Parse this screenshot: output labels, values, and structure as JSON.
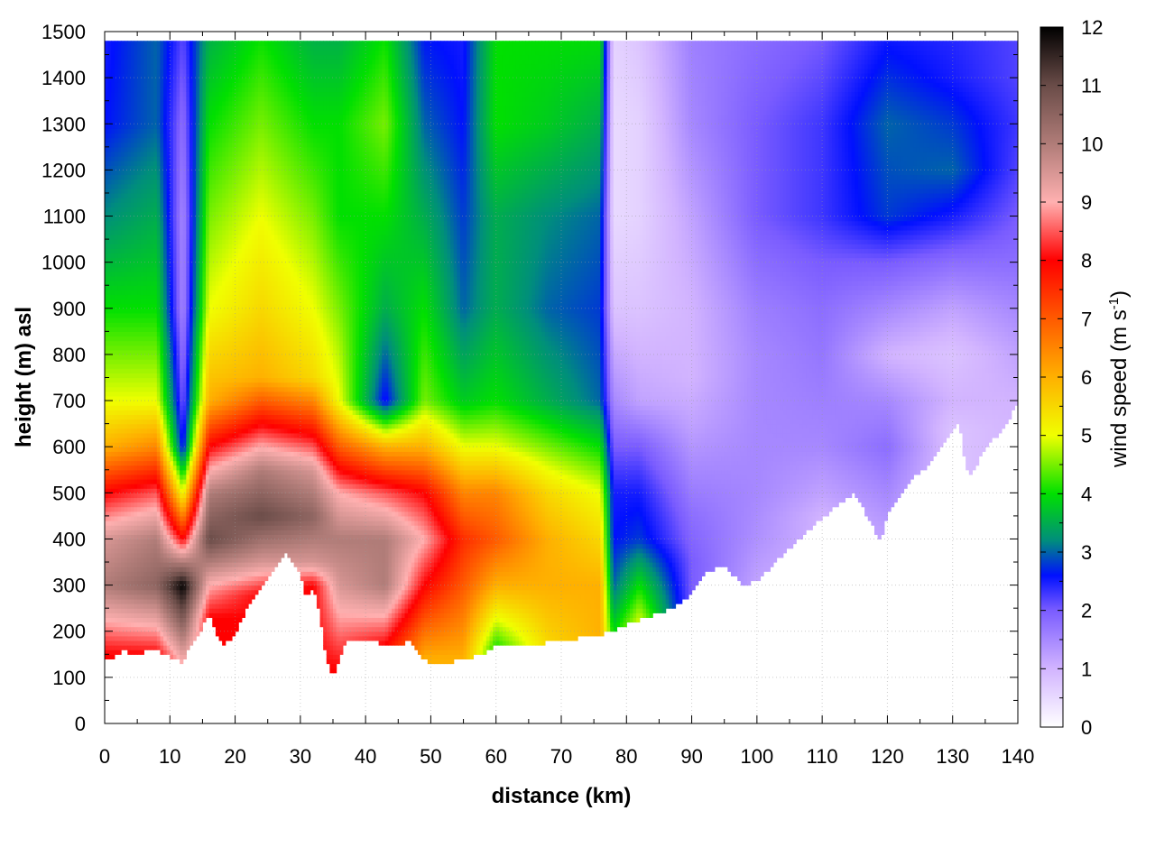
{
  "chart_data": {
    "type": "heatmap",
    "title": "",
    "xlabel": "distance (km)",
    "ylabel": "height (m) asl",
    "xlim": [
      0,
      140
    ],
    "ylim": [
      0,
      1500
    ],
    "xticks": [
      0,
      10,
      20,
      30,
      40,
      50,
      60,
      70,
      80,
      90,
      100,
      110,
      120,
      130,
      140
    ],
    "yticks": [
      0,
      100,
      200,
      300,
      400,
      500,
      600,
      700,
      800,
      900,
      1000,
      1100,
      1200,
      1300,
      1400,
      1500
    ],
    "grid": true,
    "colorbar": {
      "label_main": "wind speed (m s",
      "label_sup": "-1",
      "label_end": ")",
      "min": 0,
      "max": 12,
      "ticks": [
        0,
        1,
        2,
        3,
        4,
        5,
        6,
        7,
        8,
        9,
        10,
        11,
        12
      ],
      "colors": [
        {
          "v": 0,
          "c": "#ffffff"
        },
        {
          "v": 1,
          "c": "#d2b4ff"
        },
        {
          "v": 2,
          "c": "#7a5cff"
        },
        {
          "v": 2.6,
          "c": "#0010ff"
        },
        {
          "v": 3.2,
          "c": "#008e7c"
        },
        {
          "v": 4,
          "c": "#00e000"
        },
        {
          "v": 5,
          "c": "#f0ff00"
        },
        {
          "v": 6,
          "c": "#ffb000"
        },
        {
          "v": 7,
          "c": "#ff5a00"
        },
        {
          "v": 8,
          "c": "#ff0000"
        },
        {
          "v": 9,
          "c": "#ffb0b0"
        },
        {
          "v": 10,
          "c": "#b07c78"
        },
        {
          "v": 11,
          "c": "#6a4c48"
        },
        {
          "v": 12,
          "c": "#000000"
        }
      ]
    },
    "terrain_lower_boundary": {
      "x": [
        0,
        1,
        2,
        3,
        4,
        6,
        8,
        10,
        12,
        13,
        15,
        16,
        17,
        18,
        20,
        22,
        25,
        28,
        30,
        31,
        32,
        33,
        34,
        35,
        37,
        40,
        42,
        45,
        47,
        48,
        50,
        52,
        55,
        58,
        60,
        65,
        70,
        75,
        78,
        80,
        85,
        88,
        90,
        92,
        95,
        98,
        100,
        105,
        108,
        112,
        115,
        118,
        119,
        120,
        122,
        124,
        126,
        128,
        130,
        131,
        132,
        133,
        135,
        138,
        140
      ],
      "y": [
        140,
        135,
        150,
        160,
        150,
        155,
        160,
        145,
        130,
        170,
        210,
        240,
        200,
        170,
        190,
        260,
        320,
        370,
        320,
        270,
        300,
        240,
        140,
        100,
        180,
        180,
        175,
        170,
        180,
        150,
        130,
        130,
        140,
        150,
        170,
        170,
        180,
        190,
        200,
        215,
        240,
        260,
        280,
        330,
        340,
        300,
        310,
        380,
        420,
        470,
        500,
        420,
        400,
        450,
        500,
        540,
        550,
        600,
        640,
        650,
        560,
        540,
        600,
        640,
        700
      ]
    },
    "top_boundary_height": 1480,
    "value_field_profiles": [
      {
        "x": 0,
        "z": [
          150,
          300,
          400,
          500,
          600,
          700,
          900,
          1100,
          1300,
          1500
        ],
        "v": [
          8,
          10,
          9.5,
          8,
          6,
          5,
          4,
          3.2,
          2.6,
          2.5
        ]
      },
      {
        "x": 8,
        "z": [
          150,
          300,
          400,
          500,
          600,
          700,
          900,
          1100,
          1300,
          1500
        ],
        "v": [
          8,
          10.5,
          10,
          8.5,
          6.5,
          5,
          4,
          3.5,
          3,
          3
        ]
      },
      {
        "x": 12,
        "z": [
          130,
          300,
          400,
          500,
          600,
          700,
          900,
          1100,
          1300,
          1500
        ],
        "v": [
          9,
          12,
          8,
          5,
          2.5,
          2,
          1.5,
          1.5,
          1.8,
          2.2
        ]
      },
      {
        "x": 16,
        "z": [
          230,
          300,
          400,
          500,
          600,
          700,
          900,
          1100,
          1300,
          1500
        ],
        "v": [
          8,
          9,
          11,
          10,
          8,
          6,
          5,
          4.5,
          4,
          3.5
        ]
      },
      {
        "x": 24,
        "z": [
          280,
          350,
          450,
          550,
          650,
          750,
          900,
          1100,
          1300,
          1500
        ],
        "v": [
          8,
          9.5,
          11,
          10,
          8,
          6,
          5.5,
          5,
          4.5,
          4
        ]
      },
      {
        "x": 32,
        "z": [
          300,
          350,
          450,
          550,
          650,
          750,
          900,
          1100,
          1300,
          1500
        ],
        "v": [
          8,
          9.5,
          10.5,
          9.5,
          7.5,
          5.5,
          5,
          4.5,
          4,
          3.5
        ]
      },
      {
        "x": 36,
        "z": [
          120,
          300,
          400,
          500,
          600,
          700,
          900,
          1100,
          1300,
          1500
        ],
        "v": [
          8,
          9.5,
          10,
          9,
          7,
          5,
          4.5,
          4,
          4,
          3.5
        ]
      },
      {
        "x": 43,
        "z": [
          170,
          300,
          400,
          500,
          600,
          700,
          900,
          1100,
          1300,
          1500
        ],
        "v": [
          8,
          10,
          10,
          8.5,
          6,
          2.5,
          3.5,
          4,
          4.5,
          4
        ]
      },
      {
        "x": 49,
        "z": [
          140,
          300,
          400,
          500,
          600,
          700,
          900,
          1100,
          1300,
          1500
        ],
        "v": [
          6,
          8,
          9,
          8,
          6,
          4.5,
          4,
          3.5,
          3,
          2.6
        ]
      },
      {
        "x": 55,
        "z": [
          140,
          300,
          400,
          500,
          600,
          700,
          900,
          1100,
          1300,
          1500
        ],
        "v": [
          6,
          7,
          7.5,
          6.5,
          5,
          3.8,
          3,
          2.8,
          2.6,
          2.5
        ]
      },
      {
        "x": 60,
        "z": [
          160,
          300,
          400,
          500,
          600,
          700,
          900,
          1100,
          1300,
          1500
        ],
        "v": [
          4,
          6,
          7,
          6.5,
          5,
          4,
          3.5,
          3.5,
          4,
          4
        ]
      },
      {
        "x": 68,
        "z": [
          170,
          300,
          400,
          500,
          600,
          700,
          900,
          1100,
          1300,
          1500
        ],
        "v": [
          5.5,
          6,
          6,
          5.5,
          4.5,
          3.5,
          3,
          3.2,
          3.8,
          4
        ]
      },
      {
        "x": 76,
        "z": [
          180,
          300,
          400,
          500,
          600,
          700,
          900,
          1100,
          1300,
          1500
        ],
        "v": [
          6,
          6,
          5.5,
          5,
          4,
          3,
          2.8,
          3,
          3.5,
          4
        ]
      },
      {
        "x": 78,
        "z": [
          190,
          300,
          400,
          500,
          600,
          700,
          900,
          1100,
          1300,
          1500
        ],
        "v": [
          4,
          3,
          2.6,
          2.5,
          2,
          1.5,
          0.8,
          0.5,
          0.5,
          0.6
        ]
      },
      {
        "x": 82,
        "z": [
          215,
          300,
          400,
          500,
          600,
          700,
          900,
          1100,
          1300,
          1500
        ],
        "v": [
          5,
          4,
          2.8,
          2.5,
          2,
          1.2,
          0.8,
          0.6,
          0.6,
          0.8
        ]
      },
      {
        "x": 90,
        "z": [
          280,
          350,
          450,
          550,
          650,
          750,
          900,
          1100,
          1300,
          1500
        ],
        "v": [
          2,
          2,
          1.8,
          1.5,
          1.2,
          1,
          1,
          1.2,
          1.5,
          1.6
        ]
      },
      {
        "x": 100,
        "z": [
          310,
          400,
          500,
          600,
          700,
          800,
          900,
          1100,
          1300,
          1500
        ],
        "v": [
          1.2,
          1.4,
          1.5,
          1.5,
          1.5,
          1.5,
          1.6,
          2,
          2,
          1.8
        ]
      },
      {
        "x": 110,
        "z": [
          450,
          500,
          600,
          700,
          800,
          900,
          1000,
          1100,
          1300,
          1500
        ],
        "v": [
          1,
          1.2,
          1.5,
          1.6,
          1.7,
          1.8,
          2,
          2.3,
          2.3,
          2
        ]
      },
      {
        "x": 120,
        "z": [
          400,
          500,
          600,
          700,
          800,
          900,
          1000,
          1100,
          1300,
          1500
        ],
        "v": [
          1.2,
          1.5,
          1.8,
          1.5,
          1,
          1.5,
          2,
          2.8,
          3,
          2.5
        ]
      },
      {
        "x": 130,
        "z": [
          640,
          700,
          800,
          900,
          1000,
          1100,
          1200,
          1300,
          1400,
          1500
        ],
        "v": [
          0.8,
          1,
          0.8,
          1.2,
          1.8,
          2.5,
          3,
          2.8,
          2.5,
          2.4
        ]
      },
      {
        "x": 140,
        "z": [
          700,
          800,
          900,
          1000,
          1100,
          1200,
          1300,
          1400,
          1500,
          1500
        ],
        "v": [
          1,
          1.2,
          1.5,
          1.8,
          2,
          2.2,
          2.3,
          2.2,
          2.2,
          2.2
        ]
      }
    ]
  }
}
